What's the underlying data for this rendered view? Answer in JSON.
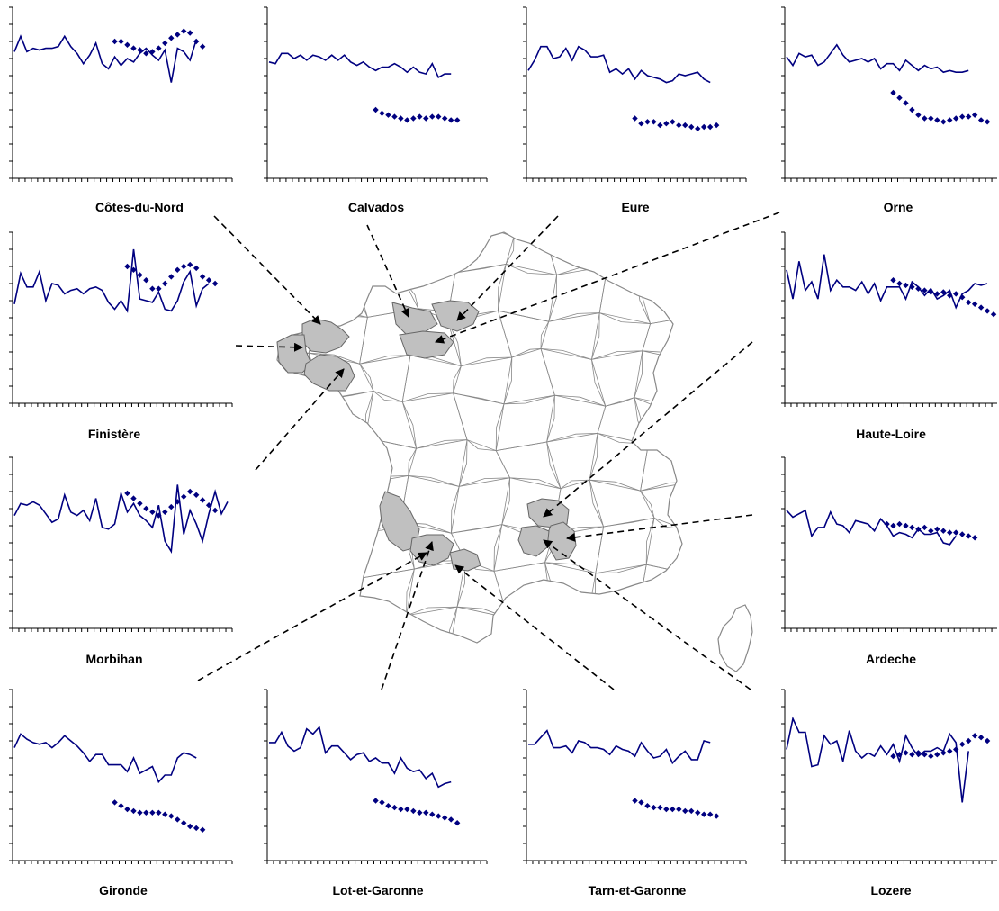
{
  "colors": {
    "series": "#000080",
    "axis": "#000000",
    "map_outline": "#888888",
    "map_fill": "#ffffff",
    "highlight_fill": "#c0c0c0",
    "connector": "#000000"
  },
  "chart_data": [
    {
      "type": "line",
      "title": "Côtes-du-Nord",
      "ylim": [
        0,
        10
      ],
      "series": [
        {
          "values": [
            7.4,
            8.3,
            7.4,
            7.6,
            7.5,
            7.6,
            7.6,
            7.7,
            8.3,
            7.7,
            7.3,
            6.7,
            7.2,
            7.9,
            6.7,
            6.4,
            7.1,
            6.6,
            7.0,
            6.8,
            7.3,
            7.6,
            7.2,
            6.9,
            7.5,
            5.6,
            7.6,
            7.4,
            6.9,
            8.1
          ]
        },
        {
          "x": [
            16,
            17,
            18,
            19,
            20,
            21,
            22,
            23,
            24,
            25,
            26,
            27,
            28,
            29,
            30
          ],
          "values": [
            8.0,
            8.0,
            7.8,
            7.6,
            7.5,
            7.3,
            7.4,
            7.6,
            7.9,
            8.2,
            8.4,
            8.6,
            8.5,
            8.0,
            7.7
          ]
        }
      ]
    },
    {
      "type": "line",
      "title": "Calvados",
      "ylim": [
        0,
        10
      ],
      "series": [
        {
          "values": [
            6.8,
            6.7,
            7.3,
            7.3,
            7.0,
            7.2,
            6.9,
            7.2,
            7.1,
            6.9,
            7.2,
            6.9,
            7.2,
            6.8,
            6.6,
            6.8,
            6.5,
            6.3,
            6.5,
            6.5,
            6.7,
            6.5,
            6.2,
            6.5,
            6.2,
            6.1,
            6.7,
            5.9,
            6.1,
            6.1
          ]
        },
        {
          "x": [
            17,
            18,
            19,
            20,
            21,
            22,
            23,
            24,
            25,
            26,
            27,
            28,
            29,
            30
          ],
          "values": [
            4.0,
            3.8,
            3.7,
            3.6,
            3.5,
            3.4,
            3.5,
            3.6,
            3.5,
            3.6,
            3.6,
            3.5,
            3.4,
            3.4
          ]
        }
      ]
    },
    {
      "type": "line",
      "title": "Eure",
      "ylim": [
        0,
        10
      ],
      "series": [
        {
          "values": [
            6.3,
            6.9,
            7.7,
            7.7,
            7.0,
            7.1,
            7.6,
            6.9,
            7.7,
            7.5,
            7.1,
            7.1,
            7.2,
            6.2,
            6.4,
            6.1,
            6.4,
            5.8,
            6.3,
            6.0,
            5.9,
            5.8,
            5.6,
            5.7,
            6.1,
            6.0,
            6.1,
            6.2,
            5.8,
            5.6
          ]
        },
        {
          "x": [
            17,
            18,
            19,
            20,
            21,
            22,
            23,
            24,
            25,
            26,
            27,
            28,
            29,
            30
          ],
          "values": [
            3.5,
            3.2,
            3.3,
            3.3,
            3.1,
            3.2,
            3.3,
            3.1,
            3.1,
            3.0,
            2.9,
            3.0,
            3.0,
            3.1
          ]
        }
      ]
    },
    {
      "type": "line",
      "title": "Orne",
      "ylim": [
        0,
        10
      ],
      "series": [
        {
          "values": [
            7.1,
            6.6,
            7.3,
            7.1,
            7.2,
            6.6,
            6.8,
            7.3,
            7.8,
            7.2,
            6.8,
            6.9,
            7.0,
            6.8,
            7.0,
            6.4,
            6.7,
            6.7,
            6.3,
            6.9,
            6.6,
            6.3,
            6.6,
            6.4,
            6.5,
            6.2,
            6.3,
            6.2,
            6.2,
            6.3
          ]
        },
        {
          "x": [
            17,
            18,
            19,
            20,
            21,
            22,
            23,
            24,
            25,
            26,
            27,
            28,
            29,
            30,
            31,
            32
          ],
          "values": [
            5.0,
            4.7,
            4.4,
            4.0,
            3.7,
            3.5,
            3.5,
            3.4,
            3.3,
            3.4,
            3.5,
            3.6,
            3.6,
            3.7,
            3.4,
            3.3
          ]
        }
      ]
    },
    {
      "type": "line",
      "title": "Finistère",
      "ylim": [
        0,
        10
      ],
      "series": [
        {
          "values": [
            5.8,
            7.6,
            6.8,
            6.8,
            7.7,
            6.0,
            7.0,
            6.9,
            6.4,
            6.6,
            6.7,
            6.4,
            6.7,
            6.8,
            6.6,
            5.9,
            5.5,
            6.0,
            5.4,
            9.0,
            6.1,
            6.0,
            5.9,
            6.5,
            5.5,
            5.4,
            6.0,
            7.1,
            7.7,
            5.7,
            6.7,
            7.0
          ]
        },
        {
          "x": [
            18,
            19,
            20,
            21,
            22,
            23,
            24,
            25,
            26,
            27,
            28,
            29,
            30,
            31,
            32
          ],
          "values": [
            8.0,
            7.8,
            7.5,
            7.2,
            6.7,
            6.7,
            7.0,
            7.4,
            7.8,
            8.0,
            8.1,
            7.9,
            7.4,
            7.2,
            7.0
          ]
        }
      ]
    },
    {
      "type": "line",
      "title": "Haute-Loire",
      "ylim": [
        0,
        10
      ],
      "series": [
        {
          "values": [
            7.8,
            6.1,
            8.3,
            6.6,
            7.1,
            6.1,
            8.7,
            6.6,
            7.2,
            6.8,
            6.8,
            6.6,
            7.1,
            6.4,
            7.0,
            6.0,
            6.8,
            6.8,
            6.8,
            6.1,
            7.1,
            6.8,
            6.3,
            6.7,
            6.1,
            6.3,
            6.6,
            5.6,
            6.4,
            6.6,
            7.0,
            6.9,
            7.0
          ]
        },
        {
          "x": [
            17,
            18,
            19,
            20,
            21,
            22,
            23,
            24,
            25,
            26,
            27,
            28,
            29,
            30,
            31,
            32,
            33
          ],
          "values": [
            7.2,
            7.0,
            6.9,
            6.8,
            6.7,
            6.6,
            6.5,
            6.4,
            6.5,
            6.3,
            6.4,
            6.2,
            5.9,
            5.8,
            5.6,
            5.4,
            5.2
          ]
        }
      ]
    },
    {
      "type": "line",
      "title": "Morbihan",
      "ylim": [
        0,
        10
      ],
      "series": [
        {
          "values": [
            6.6,
            7.3,
            7.2,
            7.4,
            7.2,
            6.7,
            6.2,
            6.4,
            7.8,
            6.8,
            6.6,
            6.9,
            6.3,
            7.6,
            5.9,
            5.8,
            6.1,
            7.9,
            6.8,
            7.3,
            6.6,
            6.3,
            5.9,
            7.2,
            5.1,
            4.5,
            8.4,
            5.5,
            6.9,
            6.1,
            5.1,
            6.7,
            8.0,
            6.7,
            7.4,
            5.3,
            4.5
          ]
        },
        {
          "x": [
            18,
            19,
            20,
            21,
            22,
            23,
            24,
            25,
            26,
            27,
            28,
            29,
            30,
            31,
            32
          ],
          "values": [
            7.9,
            7.6,
            7.3,
            7.0,
            6.8,
            6.6,
            6.8,
            7.1,
            7.4,
            7.7,
            8.0,
            7.8,
            7.5,
            7.2,
            6.9
          ]
        }
      ]
    },
    {
      "type": "line",
      "title": "Ardeche",
      "ylim": [
        0,
        10
      ],
      "series": [
        {
          "values": [
            6.9,
            6.5,
            6.7,
            6.9,
            5.4,
            5.9,
            5.9,
            6.8,
            6.1,
            6.0,
            5.6,
            6.3,
            6.2,
            6.1,
            5.7,
            6.4,
            6.0,
            5.4,
            5.6,
            5.5,
            5.3,
            5.8,
            5.5,
            5.5,
            5.6,
            5.0,
            4.9,
            5.4
          ]
        },
        {
          "x": [
            16,
            17,
            18,
            19,
            20,
            21,
            22,
            23,
            24,
            25,
            26,
            27,
            28,
            29,
            30
          ],
          "values": [
            6.1,
            6.0,
            6.1,
            6.0,
            5.9,
            5.8,
            5.9,
            5.7,
            5.8,
            5.7,
            5.6,
            5.6,
            5.5,
            5.4,
            5.3
          ]
        }
      ]
    },
    {
      "type": "line",
      "title": "Gironde",
      "ylim": [
        0,
        10
      ],
      "series": [
        {
          "values": [
            6.6,
            7.4,
            7.1,
            6.9,
            6.8,
            6.9,
            6.6,
            6.9,
            7.3,
            7.0,
            6.7,
            6.3,
            5.8,
            6.2,
            6.2,
            5.6,
            5.6,
            5.6,
            5.2,
            6.0,
            5.1,
            5.3,
            5.5,
            4.6,
            5.0,
            5.0,
            6.0,
            6.3,
            6.2,
            6.0
          ]
        },
        {
          "x": [
            16,
            17,
            18,
            19,
            20,
            21,
            22,
            23,
            24,
            25,
            26,
            27,
            28,
            29,
            30
          ],
          "values": [
            3.4,
            3.2,
            3.0,
            2.9,
            2.8,
            2.8,
            2.8,
            2.8,
            2.7,
            2.6,
            2.4,
            2.2,
            2.0,
            1.9,
            1.8
          ]
        }
      ]
    },
    {
      "type": "line",
      "title": "Lot-et-Garonne",
      "ylim": [
        0,
        10
      ],
      "series": [
        {
          "values": [
            6.9,
            6.9,
            7.5,
            6.7,
            6.4,
            6.6,
            7.7,
            7.4,
            7.8,
            6.3,
            6.7,
            6.7,
            6.3,
            5.9,
            6.2,
            6.3,
            5.8,
            6.0,
            5.7,
            5.7,
            5.1,
            6.0,
            5.4,
            5.2,
            5.3,
            4.8,
            5.1,
            4.3,
            4.5,
            4.6
          ]
        },
        {
          "x": [
            17,
            18,
            19,
            20,
            21,
            22,
            23,
            24,
            25,
            26,
            27,
            28,
            29,
            30
          ],
          "values": [
            3.5,
            3.4,
            3.2,
            3.1,
            3.0,
            3.0,
            2.9,
            2.8,
            2.8,
            2.7,
            2.6,
            2.5,
            2.4,
            2.2
          ]
        }
      ]
    },
    {
      "type": "line",
      "title": "Tarn-et-Garonne",
      "ylim": [
        0,
        10
      ],
      "series": [
        {
          "values": [
            6.8,
            6.8,
            7.2,
            7.6,
            6.6,
            6.6,
            6.7,
            6.3,
            7.0,
            6.9,
            6.6,
            6.6,
            6.5,
            6.2,
            6.7,
            6.5,
            6.4,
            6.1,
            6.9,
            6.4,
            6.0,
            6.1,
            6.5,
            5.7,
            6.1,
            6.4,
            5.9,
            5.9,
            7.0,
            6.9
          ]
        },
        {
          "x": [
            17,
            18,
            19,
            20,
            21,
            22,
            23,
            24,
            25,
            26,
            27,
            28,
            29,
            30
          ],
          "values": [
            3.5,
            3.4,
            3.2,
            3.1,
            3.1,
            3.0,
            3.0,
            3.0,
            2.9,
            2.9,
            2.8,
            2.7,
            2.7,
            2.6
          ]
        }
      ]
    },
    {
      "type": "line",
      "title": "Lozere",
      "ylim": [
        0,
        10
      ],
      "series": [
        {
          "values": [
            6.5,
            8.3,
            7.5,
            7.5,
            5.5,
            5.6,
            7.3,
            6.8,
            7.0,
            5.8,
            7.6,
            6.4,
            6.0,
            6.3,
            6.1,
            6.7,
            6.2,
            6.8,
            5.8,
            7.3,
            6.6,
            6.1,
            6.4,
            6.4,
            6.6,
            6.4,
            7.4,
            6.9,
            3.4,
            6.4
          ]
        },
        {
          "x": [
            17,
            18,
            19,
            20,
            21,
            22,
            23,
            24,
            25,
            26,
            27,
            28,
            29,
            30,
            31,
            32
          ],
          "values": [
            6.1,
            6.2,
            6.3,
            6.2,
            6.3,
            6.2,
            6.1,
            6.2,
            6.3,
            6.4,
            6.5,
            6.8,
            7.0,
            7.3,
            7.2,
            7.0
          ]
        }
      ]
    }
  ]
}
